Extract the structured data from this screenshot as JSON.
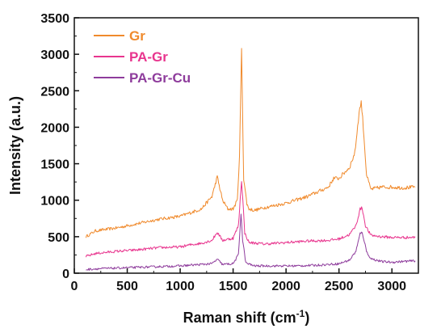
{
  "chart_data": {
    "type": "line",
    "title": "",
    "xlabel_main": "Raman shift (cm",
    "xlabel_sup": "-1",
    "xlabel_end": ")",
    "ylabel": "Intensity (a.u.)",
    "xlim": [
      0,
      3250
    ],
    "ylim": [
      0,
      3500
    ],
    "x_ticks": [
      0,
      500,
      1000,
      1500,
      2000,
      2500,
      3000
    ],
    "y_ticks": [
      0,
      500,
      1000,
      1500,
      2000,
      2500,
      3000,
      3500
    ],
    "grid": false,
    "legend_position": "top-left",
    "series": [
      {
        "name": "Gr",
        "color": "#F08A2C",
        "x": [
          110,
          200,
          400,
          600,
          800,
          1000,
          1200,
          1300,
          1350,
          1400,
          1450,
          1500,
          1540,
          1560,
          1580,
          1600,
          1630,
          1650,
          1700,
          1800,
          2000,
          2200,
          2400,
          2450,
          2500,
          2600,
          2650,
          2690,
          2710,
          2730,
          2760,
          2800,
          2900,
          3000,
          3100,
          3220
        ],
        "y": [
          500,
          580,
          620,
          680,
          740,
          780,
          880,
          1050,
          1320,
          1000,
          880,
          880,
          1000,
          1600,
          3050,
          1300,
          950,
          880,
          860,
          900,
          960,
          1050,
          1180,
          1300,
          1300,
          1450,
          1650,
          2200,
          2350,
          2000,
          1350,
          1150,
          1180,
          1180,
          1170,
          1180
        ]
      },
      {
        "name": "PA-Gr",
        "color": "#E8358E",
        "x": [
          110,
          200,
          400,
          600,
          800,
          1000,
          1100,
          1200,
          1300,
          1350,
          1400,
          1500,
          1550,
          1580,
          1610,
          1650,
          1800,
          2000,
          2200,
          2400,
          2500,
          2600,
          2660,
          2700,
          2720,
          2750,
          2800,
          2900,
          3000,
          3100,
          3220
        ],
        "y": [
          230,
          270,
          300,
          320,
          350,
          360,
          390,
          410,
          450,
          560,
          450,
          480,
          650,
          1280,
          550,
          420,
          400,
          420,
          440,
          450,
          470,
          530,
          650,
          880,
          890,
          650,
          520,
          500,
          490,
          490,
          490
        ]
      },
      {
        "name": "PA-Gr-Cu",
        "color": "#8E3C9C",
        "x": [
          110,
          200,
          400,
          600,
          800,
          1000,
          1200,
          1300,
          1350,
          1400,
          1500,
          1550,
          1575,
          1590,
          1620,
          1700,
          1900,
          2100,
          2300,
          2500,
          2600,
          2660,
          2700,
          2720,
          2760,
          2800,
          2900,
          3000,
          3100,
          3220
        ],
        "y": [
          50,
          60,
          70,
          80,
          90,
          100,
          120,
          130,
          190,
          120,
          130,
          250,
          830,
          450,
          140,
          100,
          100,
          100,
          110,
          130,
          180,
          300,
          540,
          560,
          300,
          200,
          160,
          150,
          160,
          170
        ]
      }
    ]
  }
}
